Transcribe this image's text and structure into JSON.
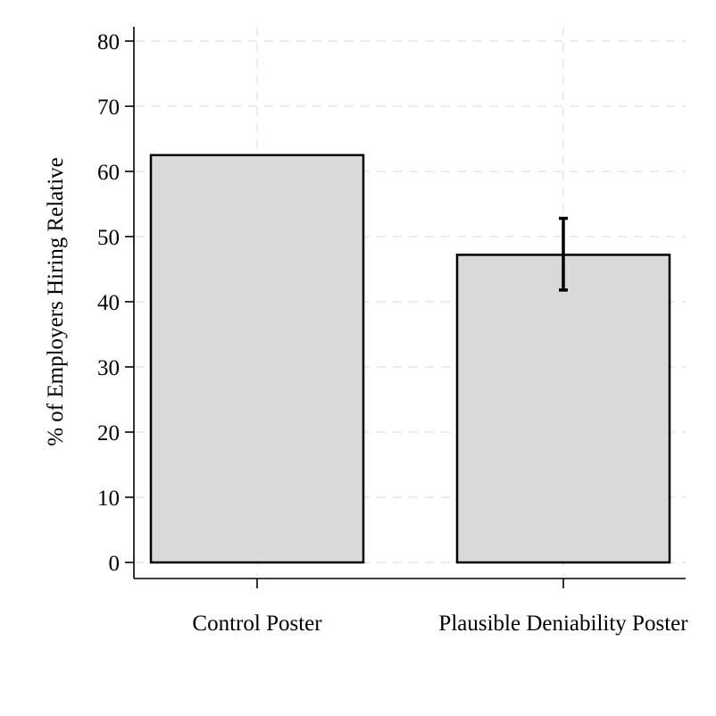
{
  "chart_data": {
    "type": "bar",
    "categories": [
      "Control Poster",
      "Plausible Deniability Poster"
    ],
    "values": [
      62.5,
      47.2
    ],
    "error_bars": [
      null,
      {
        "low": 41.8,
        "high": 52.8
      }
    ],
    "title": "",
    "xlabel": "",
    "ylabel": "% of Employers Hiring Relative",
    "ylim": [
      0,
      80
    ],
    "yticks": [
      "0",
      "10",
      "20",
      "30",
      "40",
      "50",
      "60",
      "70",
      "80"
    ],
    "grid": true,
    "bar_color": "#d9d9d9",
    "edge_color": "#000000",
    "grid_color": "#e6e6e6"
  }
}
